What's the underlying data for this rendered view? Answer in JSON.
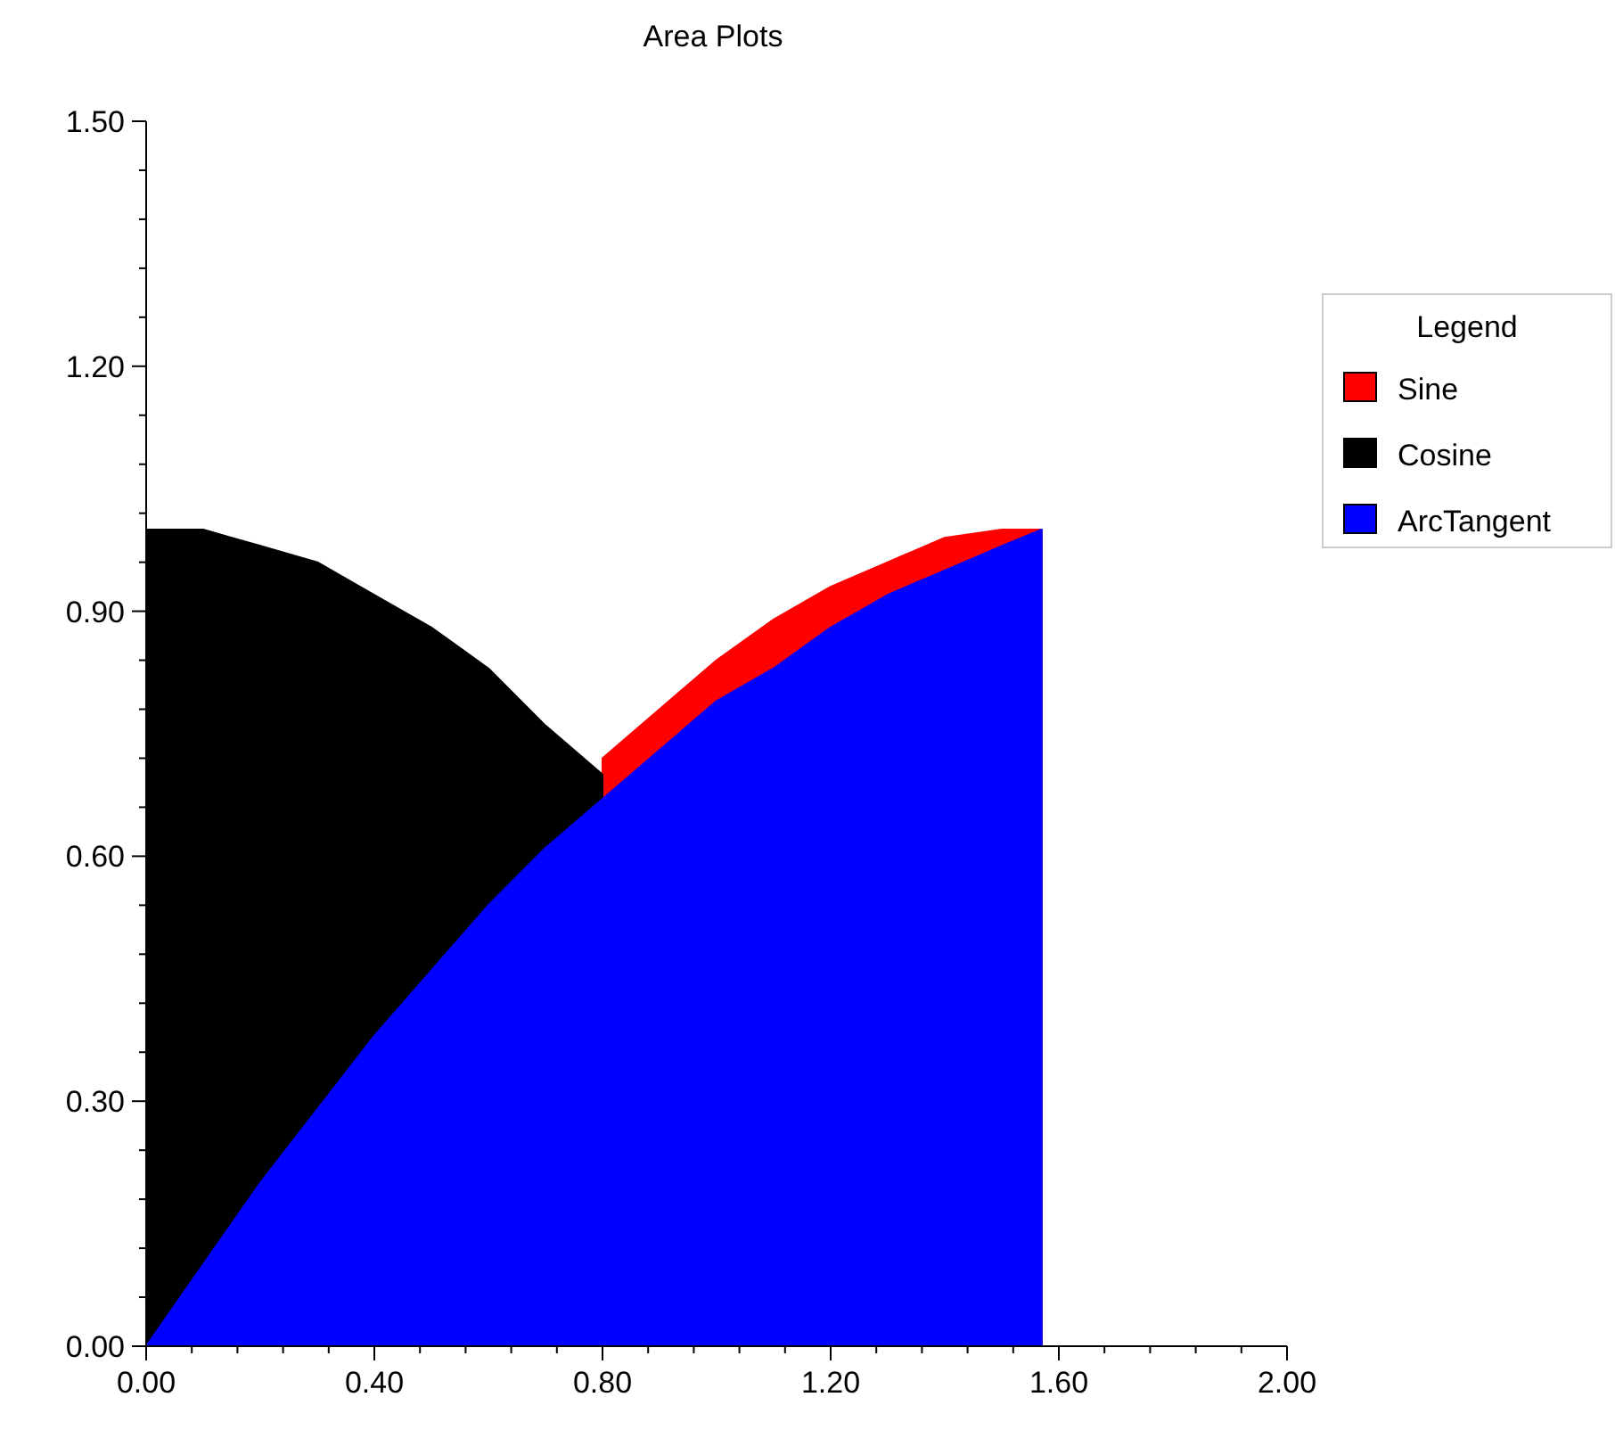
{
  "chart_data": {
    "type": "area",
    "title": "Area Plots",
    "legend_title": "Legend",
    "legend": "right",
    "grid": false,
    "x": [
      0,
      0.1,
      0.2,
      0.3,
      0.4,
      0.5,
      0.6,
      0.7,
      0.8,
      0.9,
      1.0,
      1.1,
      1.2,
      1.3,
      1.4,
      1.5,
      1.57
    ],
    "series": [
      {
        "name": "Sine",
        "color": "#ff0000",
        "values": [
          null,
          null,
          null,
          null,
          null,
          null,
          null,
          null,
          0.72,
          0.78,
          0.84,
          0.89,
          0.93,
          0.96,
          0.99,
          1.0,
          1.0
        ]
      },
      {
        "name": "Cosine",
        "color": "#000000",
        "values": [
          1.0,
          1.0,
          0.98,
          0.96,
          0.92,
          0.88,
          0.83,
          0.76,
          0.7,
          null,
          null,
          null,
          null,
          null,
          null,
          null,
          null
        ]
      },
      {
        "name": "ArcTangent",
        "color": "#0000ff",
        "values": [
          0,
          0.1,
          0.2,
          0.29,
          0.38,
          0.46,
          0.54,
          0.61,
          0.67,
          0.73,
          0.79,
          0.83,
          0.88,
          0.92,
          0.95,
          0.98,
          1.0
        ]
      }
    ],
    "xlim": [
      0,
      2
    ],
    "xticks": [
      {
        "value": 0,
        "label": "0.00"
      },
      {
        "value": 0.08,
        "label": null
      },
      {
        "value": 0.16,
        "label": null
      },
      {
        "value": 0.24,
        "label": null
      },
      {
        "value": 0.32,
        "label": null
      },
      {
        "value": 0.4,
        "label": "0.40"
      },
      {
        "value": 0.48,
        "label": null
      },
      {
        "value": 0.56,
        "label": null
      },
      {
        "value": 0.64,
        "label": null
      },
      {
        "value": 0.72,
        "label": null
      },
      {
        "value": 0.8,
        "label": "0.80"
      },
      {
        "value": 0.88,
        "label": null
      },
      {
        "value": 0.96,
        "label": null
      },
      {
        "value": 1.04,
        "label": null
      },
      {
        "value": 1.12,
        "label": null
      },
      {
        "value": 1.2,
        "label": "1.20"
      },
      {
        "value": 1.28,
        "label": null
      },
      {
        "value": 1.36,
        "label": null
      },
      {
        "value": 1.44,
        "label": null
      },
      {
        "value": 1.52,
        "label": null
      },
      {
        "value": 1.6,
        "label": "1.60"
      },
      {
        "value": 1.68,
        "label": null
      },
      {
        "value": 1.76,
        "label": null
      },
      {
        "value": 1.84,
        "label": null
      },
      {
        "value": 1.92,
        "label": null
      },
      {
        "value": 2,
        "label": "2.00"
      }
    ],
    "ylim": [
      0,
      1.5
    ],
    "yticks": [
      {
        "value": 0,
        "label": "0.00"
      },
      {
        "value": 0.06,
        "label": null
      },
      {
        "value": 0.12,
        "label": null
      },
      {
        "value": 0.18,
        "label": null
      },
      {
        "value": 0.24,
        "label": null
      },
      {
        "value": 0.3,
        "label": "0.30"
      },
      {
        "value": 0.36,
        "label": null
      },
      {
        "value": 0.42,
        "label": null
      },
      {
        "value": 0.48,
        "label": null
      },
      {
        "value": 0.54,
        "label": null
      },
      {
        "value": 0.6,
        "label": "0.60"
      },
      {
        "value": 0.66,
        "label": null
      },
      {
        "value": 0.72,
        "label": null
      },
      {
        "value": 0.78,
        "label": null
      },
      {
        "value": 0.84,
        "label": null
      },
      {
        "value": 0.9,
        "label": "0.90"
      },
      {
        "value": 0.96,
        "label": null
      },
      {
        "value": 1.02,
        "label": null
      },
      {
        "value": 1.08,
        "label": null
      },
      {
        "value": 1.14,
        "label": null
      },
      {
        "value": 1.2,
        "label": "1.20"
      },
      {
        "value": 1.26,
        "label": null
      },
      {
        "value": 1.32,
        "label": null
      },
      {
        "value": 1.38,
        "label": null
      },
      {
        "value": 1.44,
        "label": null
      },
      {
        "value": 1.5,
        "label": "1.50"
      }
    ]
  }
}
